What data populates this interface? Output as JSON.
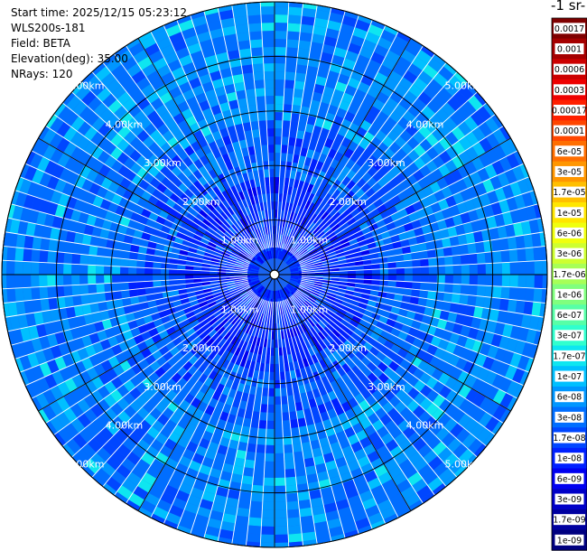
{
  "info": {
    "start_time": "Start time: 2025/12/15 05:23:12",
    "instrument": "WLS200s-181",
    "field": "Field: BETA",
    "elevation": "Elevation(deg): 35.00",
    "nrays": "NRays: 120"
  },
  "colorbar": {
    "title": "-1 sr-",
    "ticks": [
      "0.0017",
      "0.001",
      "0.0006",
      "0.0003",
      "0.00017",
      "0.0001",
      "6e-05",
      "3e-05",
      "1.7e-05",
      "1e-05",
      "6e-06",
      "3e-06",
      "1.7e-06",
      "1e-06",
      "6e-07",
      "3e-07",
      "1.7e-07",
      "1e-07",
      "6e-08",
      "3e-08",
      "1.7e-08",
      "1e-08",
      "6e-09",
      "3e-09",
      "1.7e-09",
      "1e-09"
    ],
    "colors": [
      "#7f0000",
      "#a50000",
      "#cc0000",
      "#ee0000",
      "#ff2000",
      "#ff4600",
      "#ff6e00",
      "#ff9600",
      "#ffbf00",
      "#ffe600",
      "#f0ff0e",
      "#ceff30",
      "#a7ff57",
      "#80ff7e",
      "#57ffa7",
      "#30ffce",
      "#0ee6f0",
      "#00c0ff",
      "#0096ff",
      "#006eff",
      "#0046ff",
      "#0020ff",
      "#0000f0",
      "#0000c8",
      "#0000a0",
      "#00007f"
    ]
  },
  "chart_data": {
    "type": "heatmap",
    "projection": "polar (PPI)",
    "field": "BETA",
    "elevation_deg": 35.0,
    "n_rays": 120,
    "range_rings_km": [
      1,
      2,
      3,
      4,
      5
    ],
    "range_labels": [
      "1.00km",
      "2.00km",
      "3.00km",
      "4.00km",
      "5.00km"
    ],
    "value_range": [
      1e-09,
      0.0017
    ],
    "color_scale": "log",
    "typical_values": {
      "inner_0_to_2km": "1e-08 to 3e-08",
      "outer_2_to_5km": "3e-08 to 1e-07"
    }
  }
}
